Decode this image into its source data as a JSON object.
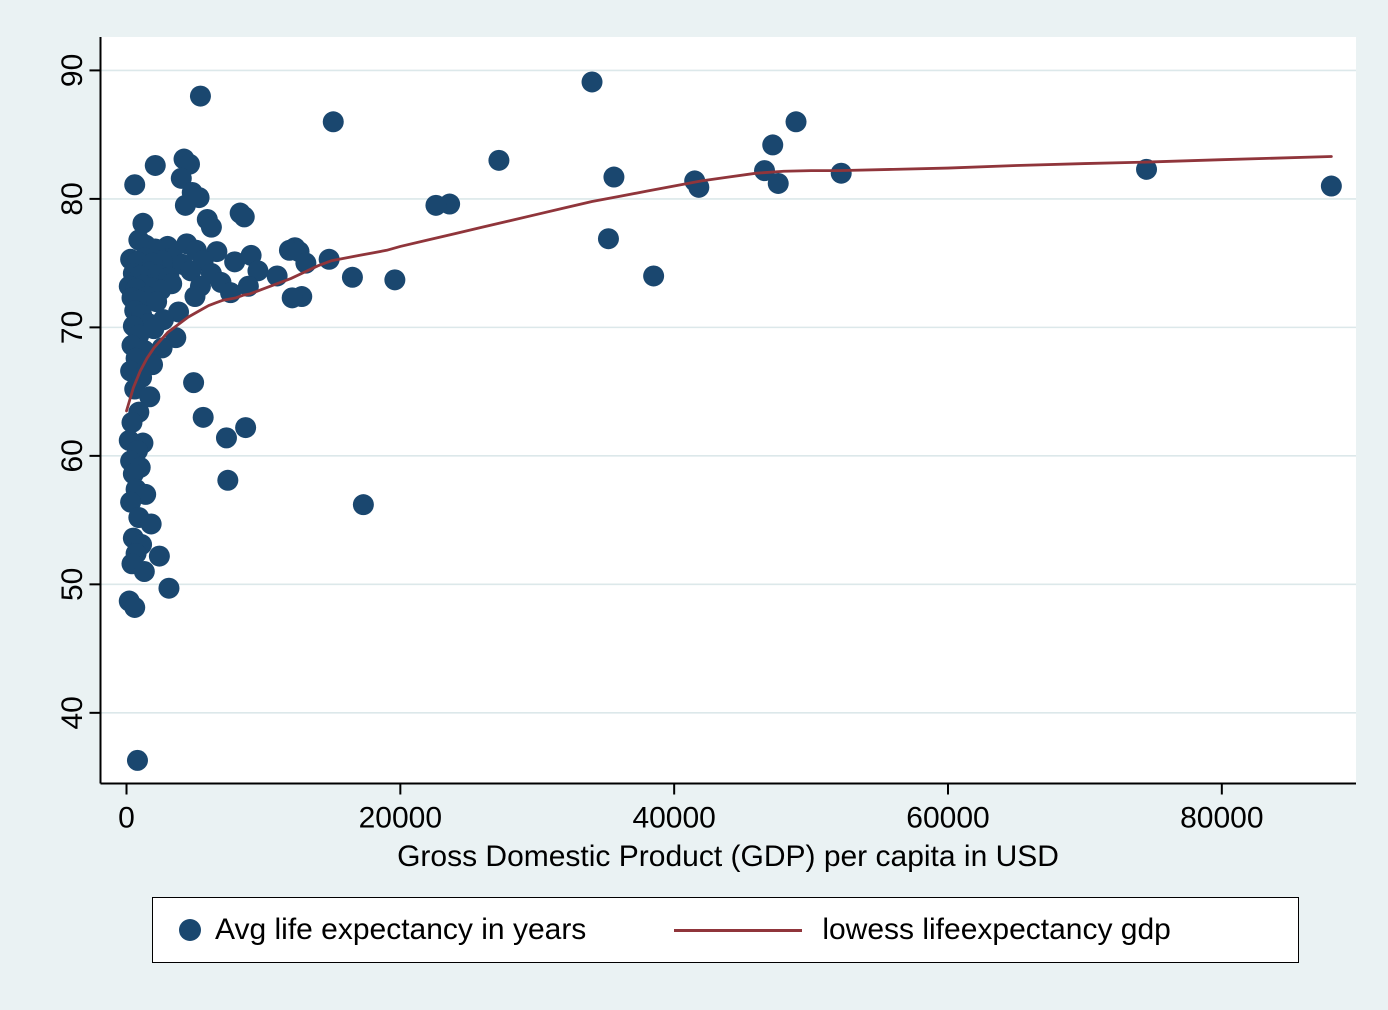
{
  "chart_data": {
    "type": "scatter",
    "title": "",
    "xlabel": "Gross Domestic Product (GDP) per capita in USD",
    "ylabel": "",
    "xlim": [
      -1900,
      89800
    ],
    "ylim": [
      34.5,
      92.6
    ],
    "xticks": [
      0,
      20000,
      40000,
      60000,
      80000
    ],
    "yticks": [
      40,
      50,
      60,
      70,
      80,
      90
    ],
    "grid": "horizontal",
    "legend_position": "bottom",
    "legend": [
      "Avg life expectancy in years",
      "lowess lifeexpectancy gdp"
    ],
    "colors": {
      "marker": "#1a476f",
      "lowess": "#90353b",
      "background": "#eaf2f3",
      "plot_bg": "#ffffff",
      "grid": "#dce8ea",
      "axis": "#000000"
    },
    "marker_radius": 10.5,
    "series": [
      {
        "name": "Avg life expectancy in years",
        "type": "scatter",
        "points": [
          [
            34000,
            89.1
          ],
          [
            5400,
            88.0
          ],
          [
            15100,
            86.0
          ],
          [
            48900,
            86.0
          ],
          [
            47200,
            84.2
          ],
          [
            4200,
            83.1
          ],
          [
            27200,
            83.0
          ],
          [
            4600,
            82.7
          ],
          [
            2100,
            82.6
          ],
          [
            74500,
            82.3
          ],
          [
            46600,
            82.2
          ],
          [
            52200,
            82.0
          ],
          [
            35600,
            81.7
          ],
          [
            4000,
            81.6
          ],
          [
            41500,
            81.4
          ],
          [
            47600,
            81.2
          ],
          [
            600,
            81.1
          ],
          [
            88000,
            81.0
          ],
          [
            41800,
            80.9
          ],
          [
            4800,
            80.5
          ],
          [
            5300,
            80.1
          ],
          [
            23600,
            79.6
          ],
          [
            22600,
            79.5
          ],
          [
            4300,
            79.5
          ],
          [
            8300,
            78.9
          ],
          [
            8600,
            78.6
          ],
          [
            5900,
            78.4
          ],
          [
            1200,
            78.1
          ],
          [
            6200,
            77.8
          ],
          [
            35200,
            76.9
          ],
          [
            900,
            76.8
          ],
          [
            4400,
            76.5
          ],
          [
            1400,
            76.4
          ],
          [
            3000,
            76.3
          ],
          [
            12300,
            76.2
          ],
          [
            2100,
            76.1
          ],
          [
            5100,
            76.0
          ],
          [
            11900,
            76.0
          ],
          [
            12600,
            75.9
          ],
          [
            6600,
            75.9
          ],
          [
            9100,
            75.6
          ],
          [
            3400,
            75.4
          ],
          [
            1300,
            75.4
          ],
          [
            300,
            75.3
          ],
          [
            14800,
            75.3
          ],
          [
            2600,
            75.2
          ],
          [
            5600,
            75.2
          ],
          [
            800,
            75.1
          ],
          [
            7900,
            75.1
          ],
          [
            1900,
            75.0
          ],
          [
            13100,
            75.0
          ],
          [
            4100,
            74.9
          ],
          [
            4700,
            74.4
          ],
          [
            9600,
            74.4
          ],
          [
            1700,
            74.3
          ],
          [
            500,
            74.2
          ],
          [
            6200,
            74.2
          ],
          [
            2300,
            74.1
          ],
          [
            1000,
            74.0
          ],
          [
            11000,
            74.0
          ],
          [
            38500,
            74.0
          ],
          [
            3100,
            73.9
          ],
          [
            16500,
            73.9
          ],
          [
            19600,
            73.7
          ],
          [
            6900,
            73.5
          ],
          [
            3300,
            73.4
          ],
          [
            1200,
            73.3
          ],
          [
            200,
            73.2
          ],
          [
            5400,
            73.2
          ],
          [
            8900,
            73.2
          ],
          [
            1800,
            73.1
          ],
          [
            700,
            73.0
          ],
          [
            2500,
            72.9
          ],
          [
            7600,
            72.7
          ],
          [
            12800,
            72.4
          ],
          [
            1500,
            72.4
          ],
          [
            5000,
            72.4
          ],
          [
            400,
            72.3
          ],
          [
            12100,
            72.3
          ],
          [
            900,
            72.1
          ],
          [
            2200,
            72.0
          ],
          [
            600,
            71.3
          ],
          [
            3800,
            71.2
          ],
          [
            1100,
            71.0
          ],
          [
            2700,
            70.6
          ],
          [
            1600,
            70.3
          ],
          [
            500,
            70.1
          ],
          [
            2000,
            69.9
          ],
          [
            900,
            69.4
          ],
          [
            3600,
            69.2
          ],
          [
            400,
            68.6
          ],
          [
            2600,
            68.4
          ],
          [
            1300,
            68.2
          ],
          [
            700,
            67.6
          ],
          [
            1900,
            67.1
          ],
          [
            300,
            66.6
          ],
          [
            1100,
            66.1
          ],
          [
            4900,
            65.7
          ],
          [
            600,
            65.2
          ],
          [
            1700,
            64.6
          ],
          [
            900,
            63.4
          ],
          [
            5600,
            63.0
          ],
          [
            400,
            62.6
          ],
          [
            8700,
            62.2
          ],
          [
            7300,
            61.4
          ],
          [
            200,
            61.2
          ],
          [
            1200,
            61.0
          ],
          [
            800,
            60.4
          ],
          [
            300,
            59.6
          ],
          [
            1000,
            59.1
          ],
          [
            500,
            58.6
          ],
          [
            7400,
            58.1
          ],
          [
            700,
            57.4
          ],
          [
            1400,
            57.0
          ],
          [
            300,
            56.4
          ],
          [
            17300,
            56.2
          ],
          [
            900,
            55.2
          ],
          [
            1800,
            54.7
          ],
          [
            500,
            53.6
          ],
          [
            1100,
            53.1
          ],
          [
            700,
            52.4
          ],
          [
            2400,
            52.2
          ],
          [
            400,
            51.6
          ],
          [
            1300,
            51.0
          ],
          [
            3100,
            49.7
          ],
          [
            200,
            48.7
          ],
          [
            600,
            48.2
          ],
          [
            800,
            36.3
          ]
        ]
      },
      {
        "name": "lowess lifeexpectancy gdp",
        "type": "line",
        "points": [
          [
            0,
            63.5
          ],
          [
            500,
            65.3
          ],
          [
            1000,
            66.6
          ],
          [
            1500,
            67.6
          ],
          [
            2000,
            68.4
          ],
          [
            2500,
            69.0
          ],
          [
            3000,
            69.6
          ],
          [
            3500,
            70.0
          ],
          [
            4000,
            70.4
          ],
          [
            4500,
            70.8
          ],
          [
            5000,
            71.1
          ],
          [
            5500,
            71.4
          ],
          [
            6000,
            71.7
          ],
          [
            6500,
            71.9
          ],
          [
            7000,
            72.1
          ],
          [
            7500,
            72.2
          ],
          [
            8000,
            72.3
          ],
          [
            8500,
            72.5
          ],
          [
            9000,
            72.6
          ],
          [
            9500,
            72.8
          ],
          [
            10000,
            73.0
          ],
          [
            11000,
            73.4
          ],
          [
            12000,
            73.8
          ],
          [
            13000,
            74.3
          ],
          [
            14000,
            74.8
          ],
          [
            15000,
            75.2
          ],
          [
            16000,
            75.4
          ],
          [
            17000,
            75.6
          ],
          [
            18000,
            75.8
          ],
          [
            19000,
            76.0
          ],
          [
            20000,
            76.3
          ],
          [
            22000,
            76.8
          ],
          [
            24000,
            77.3
          ],
          [
            26000,
            77.8
          ],
          [
            28000,
            78.3
          ],
          [
            30000,
            78.8
          ],
          [
            32000,
            79.3
          ],
          [
            34000,
            79.8
          ],
          [
            36000,
            80.2
          ],
          [
            38000,
            80.6
          ],
          [
            40000,
            81.0
          ],
          [
            42000,
            81.4
          ],
          [
            44000,
            81.7
          ],
          [
            46000,
            82.0
          ],
          [
            48000,
            82.15
          ],
          [
            50000,
            82.2
          ],
          [
            52000,
            82.2
          ],
          [
            56000,
            82.3
          ],
          [
            60000,
            82.4
          ],
          [
            65000,
            82.6
          ],
          [
            70000,
            82.75
          ],
          [
            74000,
            82.85
          ],
          [
            80000,
            83.05
          ],
          [
            88000,
            83.3
          ]
        ]
      }
    ]
  }
}
